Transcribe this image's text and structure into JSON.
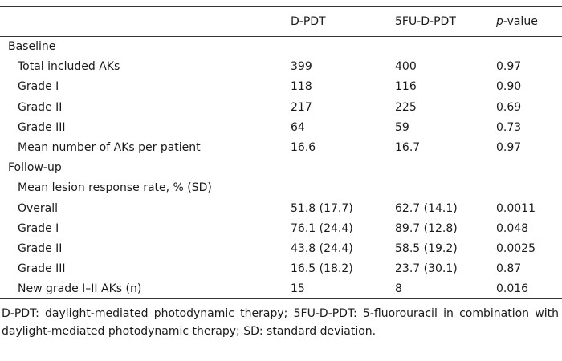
{
  "table": {
    "columns": [
      "D-PDT",
      "5FU-D-PDT",
      "p-value"
    ],
    "sections": [
      {
        "title": "Baseline",
        "rows": [
          {
            "label": "Total included AKs",
            "values": [
              "399",
              "400",
              "0.97"
            ]
          },
          {
            "label": "Grade I",
            "values": [
              "118",
              "116",
              "0.90"
            ]
          },
          {
            "label": "Grade II",
            "values": [
              "217",
              "225",
              "0.69"
            ]
          },
          {
            "label": "Grade III",
            "values": [
              "64",
              "59",
              "0.73"
            ]
          },
          {
            "label": "Mean number of AKs per patient",
            "values": [
              "16.6",
              "16.7",
              "0.97"
            ]
          }
        ]
      },
      {
        "title": "Follow-up",
        "rows": [
          {
            "label": "Mean lesion response rate, % (SD)"
          },
          {
            "label": "Overall",
            "values": [
              "51.8 (17.7)",
              "62.7 (14.1)",
              "0.0011"
            ]
          },
          {
            "label": "Grade I",
            "values": [
              "76.1 (24.4)",
              "89.7 (12.8)",
              "0.048"
            ]
          },
          {
            "label": "Grade II",
            "values": [
              "43.8 (24.4)",
              "58.5 (19.2)",
              "0.0025"
            ]
          },
          {
            "label": "Grade III",
            "values": [
              "16.5 (18.2)",
              "23.7 (30.1)",
              "0.87"
            ]
          },
          {
            "label": "New grade I–II AKs (n)",
            "values": [
              "15",
              "8",
              "0.016"
            ]
          }
        ]
      }
    ]
  },
  "footnote": "D-PDT: daylight-mediated photodynamic therapy; 5FU-D-PDT: 5-fluorouracil in combination with daylight-mediated photodynamic therapy; SD: standard deviation."
}
